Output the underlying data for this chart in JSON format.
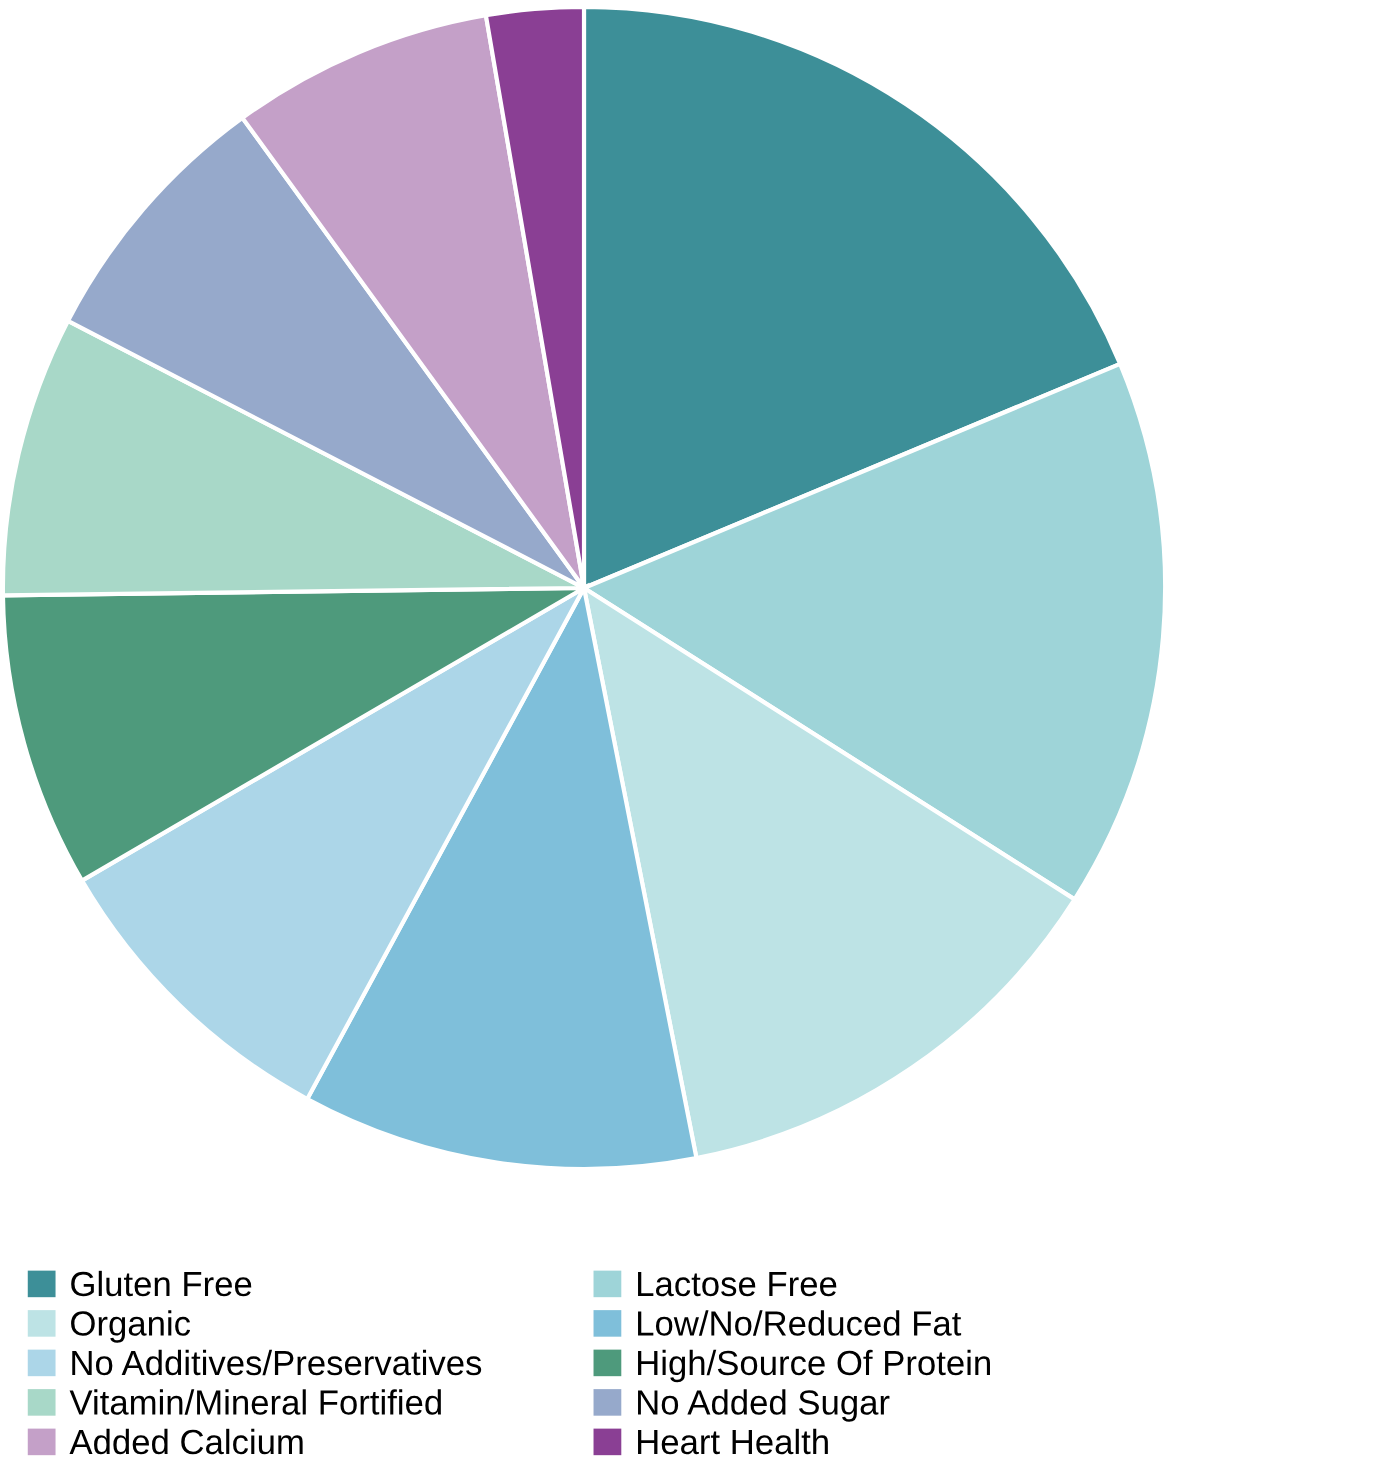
{
  "chart_data": {
    "type": "pie",
    "categories": [
      "Gluten Free",
      "Lactose Free",
      "Organic",
      "Low/No/Reduced Fat",
      "No Additives/Preservatives",
      "High/Source Of Protein",
      "Vitamin/Mineral Fortified",
      "No Added Sugar",
      "Added Calcium",
      "Heart Health"
    ],
    "values": [
      18.7,
      15.3,
      12.9,
      11.0,
      8.7,
      8.2,
      7.8,
      7.4,
      7.3,
      2.7
    ],
    "colors": [
      "#3d8f98",
      "#9ed4d8",
      "#bde3e5",
      "#7fbfda",
      "#acd6e8",
      "#4e9a7c",
      "#a8d8c8",
      "#96a9cb",
      "#c4a0c8",
      "#8a3f94"
    ],
    "legend": "bottom"
  }
}
